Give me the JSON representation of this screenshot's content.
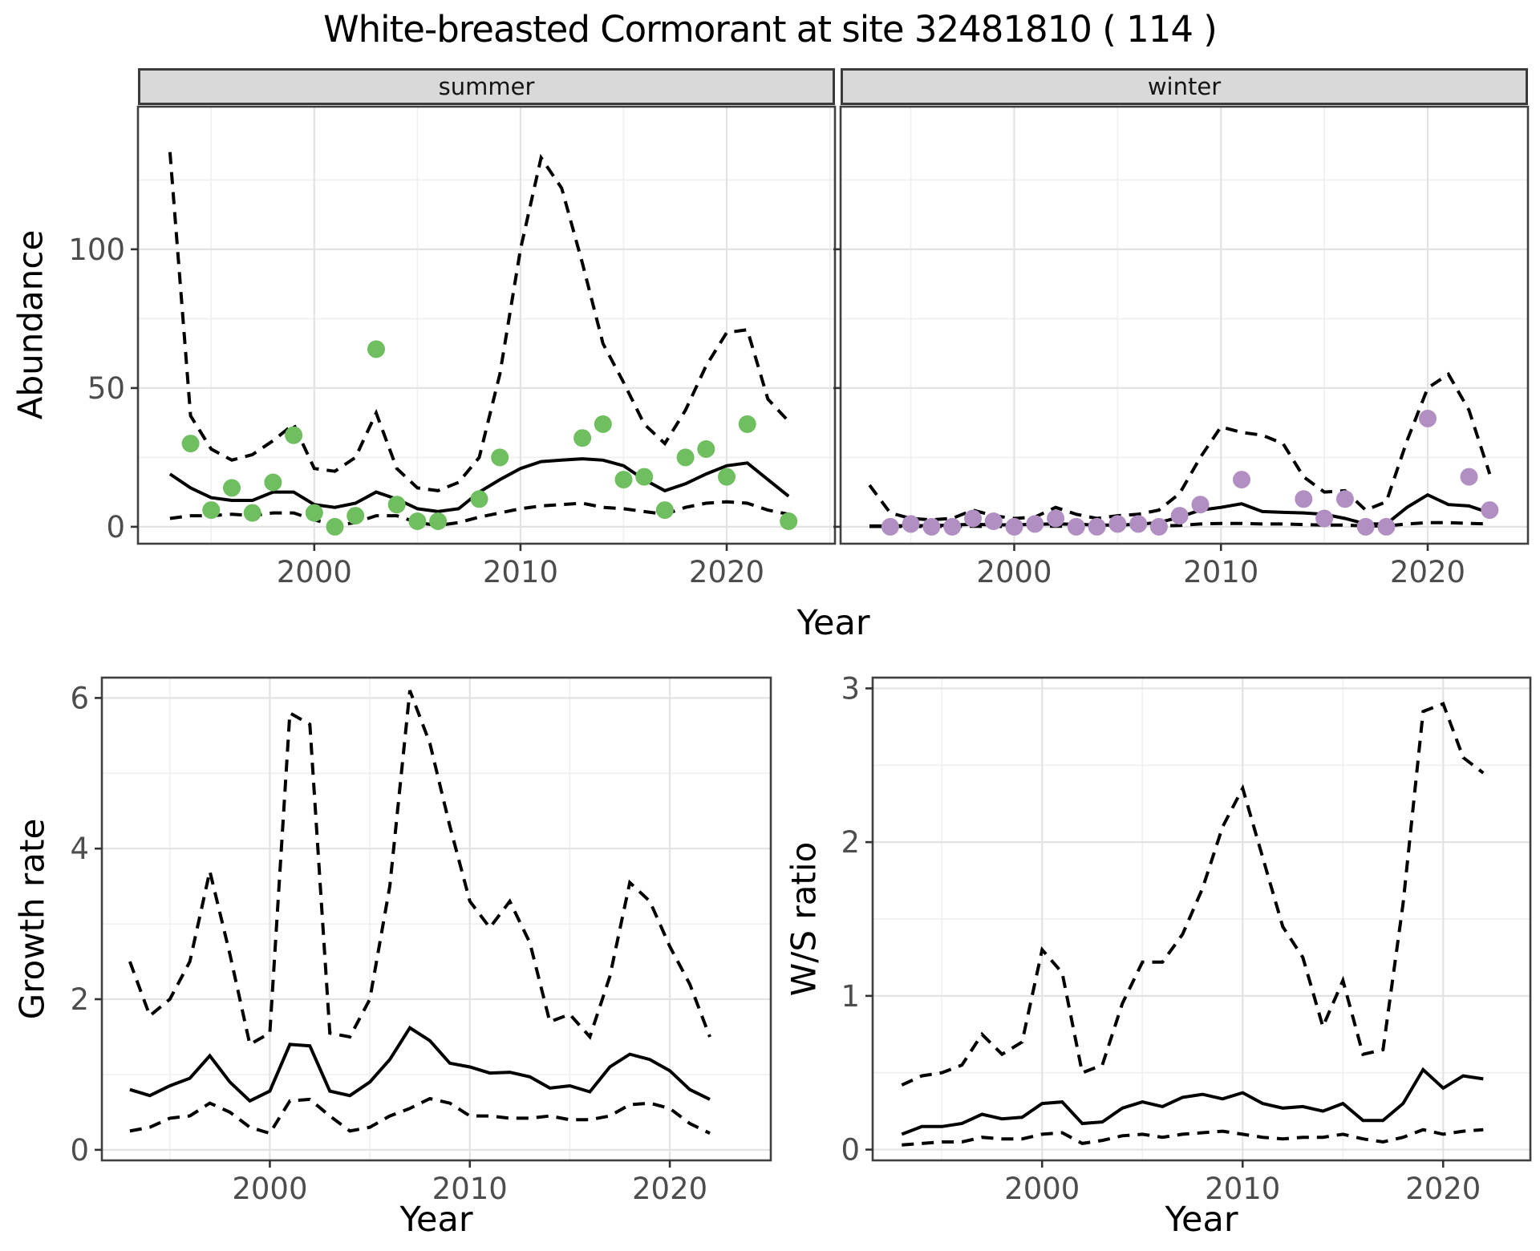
{
  "title": "White-breasted Cormorant at site 32481810 ( 114 )",
  "labels": {
    "abundance": "Abundance",
    "growth": "Growth rate",
    "ws": "W/S ratio",
    "year": "Year"
  },
  "facets": [
    {
      "label": "summer"
    },
    {
      "label": "winter"
    }
  ],
  "colors": {
    "summer_point": "#6FBE5F",
    "winter_point": "#B28FC2",
    "line": "#000000",
    "grid_major": "#E3E3E3",
    "grid_minor": "#F0F0F0",
    "strip_fill": "#D9D9D9",
    "panel_border": "#404040",
    "tick_mark": "#333333",
    "tick_text": "#4D4D4D"
  },
  "chart_data": [
    {
      "id": "abundance-summer",
      "type": "line",
      "facet": "summer",
      "title": "",
      "xlabel": "Year",
      "ylabel": "Abundance",
      "xlim": [
        1991.45,
        2025.25
      ],
      "ylim": [
        -6.1,
        151.4
      ],
      "xticks": [
        2000,
        2010,
        2020
      ],
      "yticks": [
        0,
        50,
        100
      ],
      "xminor": [
        1995,
        2005,
        2015,
        2025
      ],
      "yminor": [
        25,
        75,
        125
      ],
      "show_ytick_labels": true,
      "line_years": [
        1993,
        1994,
        1995,
        1996,
        1997,
        1998,
        1999,
        2000,
        2001,
        2002,
        2003,
        2004,
        2005,
        2006,
        2007,
        2008,
        2009,
        2010,
        2011,
        2012,
        2013,
        2014,
        2015,
        2016,
        2017,
        2018,
        2019,
        2020,
        2021,
        2022,
        2023
      ],
      "series": [
        {
          "name": "fit",
          "style": "solid",
          "values": [
            19,
            14,
            10.5,
            9.5,
            9.5,
            12.5,
            12.5,
            8,
            7,
            8.5,
            12.5,
            10,
            6.5,
            5.5,
            6.5,
            12.5,
            17,
            21,
            23.5,
            24,
            24.5,
            24,
            22,
            17,
            13,
            15.5,
            19,
            22,
            23,
            17,
            11
          ]
        },
        {
          "name": "upper95",
          "style": "dashed",
          "values": [
            135,
            40,
            28,
            24,
            26,
            31,
            37,
            21,
            20,
            25,
            41,
            21,
            14,
            13,
            16,
            25,
            55,
            100,
            133,
            122,
            95,
            66,
            52,
            37,
            30,
            42,
            58,
            70,
            71,
            46,
            38
          ]
        },
        {
          "name": "lower95",
          "style": "dashed",
          "values": [
            3,
            4,
            4,
            4.5,
            4,
            5,
            5,
            2.5,
            0.5,
            1.5,
            4,
            4,
            1.5,
            0.5,
            1.5,
            3.5,
            5,
            6.5,
            7.5,
            8,
            8.5,
            7,
            6.5,
            5.5,
            4.5,
            7,
            8.5,
            9,
            8.5,
            6,
            4.5
          ]
        }
      ],
      "points": {
        "color_key": "summer_point",
        "x": [
          1994,
          1995,
          1996,
          1997,
          1998,
          1999,
          2000,
          2001,
          2002,
          2003,
          2004,
          2005,
          2006,
          2008,
          2009,
          2013,
          2014,
          2015,
          2016,
          2017,
          2018,
          2019,
          2020,
          2021,
          2023
        ],
        "y": [
          30,
          6,
          14,
          5,
          16,
          33,
          5,
          0,
          4,
          64,
          8,
          2,
          2,
          10,
          25,
          32,
          37,
          17,
          18,
          6,
          25,
          28,
          18,
          37,
          2
        ]
      }
    },
    {
      "id": "abundance-winter",
      "type": "line",
      "facet": "winter",
      "title": "",
      "xlabel": "Year",
      "ylabel": "Abundance",
      "xlim": [
        1991.6,
        2024.85
      ],
      "ylim": [
        -6.1,
        151.4
      ],
      "xticks": [
        2000,
        2010,
        2020
      ],
      "yticks": [
        0,
        50,
        100
      ],
      "xminor": [
        1995,
        2005,
        2015
      ],
      "yminor": [
        25,
        75,
        125
      ],
      "show_ytick_labels": false,
      "line_years": [
        1993,
        1994,
        1995,
        1996,
        1997,
        1998,
        1999,
        2000,
        2001,
        2002,
        2003,
        2004,
        2005,
        2006,
        2007,
        2008,
        2009,
        2010,
        2011,
        2012,
        2013,
        2014,
        2015,
        2016,
        2017,
        2018,
        2019,
        2020,
        2021,
        2022,
        2023
      ],
      "series": [
        {
          "name": "fit",
          "style": "solid",
          "values": [
            0.3,
            0.3,
            0.4,
            0.4,
            0.6,
            0.9,
            0.7,
            0.7,
            0.9,
            1.0,
            0.9,
            0.6,
            0.6,
            0.9,
            1.5,
            3.5,
            6,
            7,
            8.3,
            5.5,
            5.2,
            5,
            4.5,
            3,
            1,
            1,
            7,
            11.5,
            8,
            7.5,
            5
          ]
        },
        {
          "name": "upper95",
          "style": "dashed",
          "values": [
            15,
            5,
            3,
            2.5,
            3,
            6,
            4,
            3,
            3.5,
            7,
            4.5,
            3,
            4,
            4.5,
            6,
            12,
            25,
            36,
            34,
            33,
            30,
            18,
            12.5,
            13,
            6,
            9,
            31,
            50,
            55,
            42,
            19
          ]
        },
        {
          "name": "lower95",
          "style": "dashed",
          "values": [
            0.1,
            0.1,
            0.1,
            0.1,
            0.1,
            0.2,
            0.1,
            0.1,
            0.2,
            0.2,
            0.2,
            0.1,
            0.1,
            0.2,
            0.3,
            0.5,
            1,
            1.2,
            1.2,
            1,
            1,
            0.8,
            0.6,
            0.6,
            0.3,
            0.3,
            1,
            1.5,
            1.5,
            1.2,
            1
          ]
        }
      ],
      "points": {
        "color_key": "winter_point",
        "x": [
          1994,
          1995,
          1996,
          1997,
          1998,
          1999,
          2000,
          2001,
          2002,
          2003,
          2004,
          2005,
          2006,
          2007,
          2008,
          2009,
          2011,
          2014,
          2015,
          2016,
          2017,
          2018,
          2020,
          2022,
          2023
        ],
        "y": [
          0,
          1,
          0,
          0,
          3,
          2,
          0,
          1,
          3,
          0,
          0,
          1,
          1,
          0,
          4,
          8,
          17,
          10,
          3,
          10,
          0,
          0,
          39,
          18,
          6
        ]
      }
    },
    {
      "id": "growth-rate",
      "type": "line",
      "facet": "",
      "title": "",
      "xlabel": "Year",
      "ylabel": "Growth rate",
      "xlim": [
        1991.6,
        2025.05
      ],
      "ylim": [
        -0.14,
        6.27
      ],
      "xticks": [
        2000,
        2010,
        2020
      ],
      "yticks": [
        0,
        2,
        4,
        6
      ],
      "xminor": [
        1995,
        2005,
        2015
      ],
      "yminor": [
        1,
        3,
        5
      ],
      "show_ytick_labels": true,
      "line_years": [
        1993,
        1994,
        1995,
        1996,
        1997,
        1998,
        1999,
        2000,
        2001,
        2002,
        2003,
        2004,
        2005,
        2006,
        2007,
        2008,
        2009,
        2010,
        2011,
        2012,
        2013,
        2014,
        2015,
        2016,
        2017,
        2018,
        2019,
        2020,
        2021,
        2022
      ],
      "series": [
        {
          "name": "fit",
          "style": "solid",
          "values": [
            0.8,
            0.72,
            0.85,
            0.95,
            1.25,
            0.9,
            0.65,
            0.78,
            1.4,
            1.38,
            0.78,
            0.72,
            0.9,
            1.2,
            1.62,
            1.45,
            1.15,
            1.1,
            1.02,
            1.03,
            0.97,
            0.82,
            0.85,
            0.77,
            1.1,
            1.27,
            1.2,
            1.05,
            0.8,
            0.67
          ]
        },
        {
          "name": "upper95",
          "style": "dashed",
          "values": [
            2.5,
            1.78,
            2.0,
            2.5,
            3.7,
            2.6,
            1.4,
            1.55,
            5.8,
            5.65,
            1.55,
            1.5,
            2.0,
            3.5,
            6.1,
            5.4,
            4.3,
            3.3,
            2.95,
            3.3,
            2.75,
            1.7,
            1.8,
            1.5,
            2.3,
            3.55,
            3.3,
            2.7,
            2.2,
            1.5
          ]
        },
        {
          "name": "lower95",
          "style": "dashed",
          "values": [
            0.25,
            0.3,
            0.42,
            0.45,
            0.62,
            0.5,
            0.3,
            0.22,
            0.65,
            0.67,
            0.45,
            0.25,
            0.3,
            0.45,
            0.55,
            0.68,
            0.62,
            0.45,
            0.45,
            0.42,
            0.42,
            0.45,
            0.4,
            0.4,
            0.45,
            0.6,
            0.62,
            0.55,
            0.35,
            0.22
          ]
        }
      ],
      "points": null
    },
    {
      "id": "ws-ratio",
      "type": "line",
      "facet": "",
      "title": "",
      "xlabel": "Year",
      "ylabel": "W/S ratio",
      "xlim": [
        1991.55,
        2024.35
      ],
      "ylim": [
        -0.07,
        3.07
      ],
      "xticks": [
        2000,
        2010,
        2020
      ],
      "yticks": [
        0,
        1,
        2,
        3
      ],
      "xminor": [
        1995,
        2005,
        2015
      ],
      "yminor": [
        0.5,
        1.5,
        2.5
      ],
      "show_ytick_labels": true,
      "line_years": [
        1993,
        1994,
        1995,
        1996,
        1997,
        1998,
        1999,
        2000,
        2001,
        2002,
        2003,
        2004,
        2005,
        2006,
        2007,
        2008,
        2009,
        2010,
        2011,
        2012,
        2013,
        2014,
        2015,
        2016,
        2017,
        2018,
        2019,
        2020,
        2021,
        2022
      ],
      "series": [
        {
          "name": "fit",
          "style": "solid",
          "values": [
            0.1,
            0.15,
            0.15,
            0.17,
            0.23,
            0.2,
            0.21,
            0.3,
            0.31,
            0.17,
            0.18,
            0.27,
            0.31,
            0.28,
            0.34,
            0.36,
            0.33,
            0.37,
            0.3,
            0.27,
            0.28,
            0.25,
            0.3,
            0.19,
            0.19,
            0.3,
            0.52,
            0.4,
            0.48,
            0.46
          ]
        },
        {
          "name": "upper95",
          "style": "dashed",
          "values": [
            0.42,
            0.48,
            0.5,
            0.55,
            0.75,
            0.62,
            0.7,
            1.3,
            1.15,
            0.5,
            0.55,
            0.95,
            1.22,
            1.22,
            1.4,
            1.7,
            2.1,
            2.35,
            1.9,
            1.45,
            1.25,
            0.8,
            1.1,
            0.62,
            0.65,
            1.6,
            2.85,
            2.9,
            2.55,
            2.45
          ]
        },
        {
          "name": "lower95",
          "style": "dashed",
          "values": [
            0.03,
            0.04,
            0.05,
            0.05,
            0.08,
            0.07,
            0.07,
            0.1,
            0.11,
            0.04,
            0.06,
            0.09,
            0.1,
            0.08,
            0.1,
            0.11,
            0.12,
            0.1,
            0.08,
            0.07,
            0.08,
            0.08,
            0.1,
            0.07,
            0.05,
            0.08,
            0.13,
            0.1,
            0.12,
            0.13
          ]
        }
      ],
      "points": null
    }
  ]
}
